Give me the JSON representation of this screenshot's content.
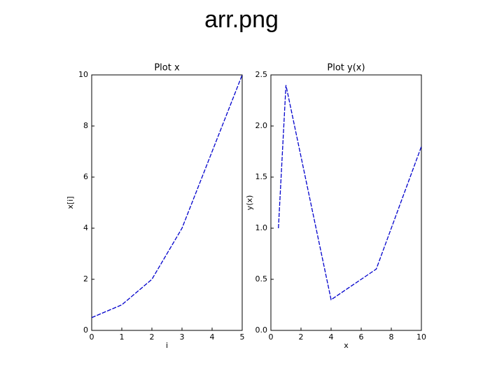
{
  "slide": {
    "title": "arr.png"
  },
  "chart_data": [
    {
      "type": "line",
      "title": "Plot x",
      "xlabel": "i",
      "ylabel": "x[i]",
      "x": [
        0,
        1,
        2,
        3,
        4,
        5
      ],
      "values": [
        0.5,
        1,
        2,
        4,
        7,
        10
      ],
      "color": "#0000cc",
      "xlim": [
        0,
        5
      ],
      "ylim": [
        0,
        10
      ],
      "xticks": [
        0,
        1,
        2,
        3,
        4,
        5
      ],
      "yticks": [
        0,
        2,
        4,
        6,
        8,
        10
      ]
    },
    {
      "type": "line",
      "title": "Plot y(x)",
      "xlabel": "x",
      "ylabel": "y(x)",
      "x": [
        0.5,
        1,
        4,
        7,
        10
      ],
      "values": [
        1.0,
        2.4,
        0.3,
        0.6,
        1.8
      ],
      "color": "#0000cc",
      "xlim": [
        0,
        10
      ],
      "ylim": [
        0,
        2.5
      ],
      "xticks": [
        0,
        2,
        4,
        6,
        8,
        10
      ],
      "yticks": [
        {
          "value": 0,
          "label": "0.0"
        },
        {
          "value": 0.5,
          "label": "0.5"
        },
        {
          "value": 1,
          "label": "1.0"
        },
        {
          "value": 1.5,
          "label": "1.5"
        },
        {
          "value": 2,
          "label": "2.0"
        },
        {
          "value": 2.5,
          "label": "2.5"
        }
      ]
    }
  ]
}
